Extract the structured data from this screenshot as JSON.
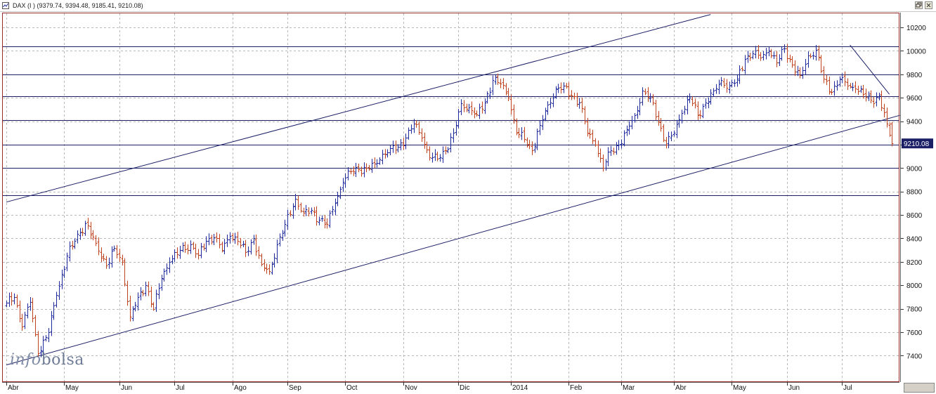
{
  "window": {
    "title": "DAX (I ) (9379.74, 9394.48, 9185.41, 9210.08)"
  },
  "watermark": {
    "part1": "info",
    "part2": "bolsa"
  },
  "colors": {
    "up_bar": "#1f2a9e",
    "down_bar": "#c0431d",
    "hline": "#1a1f66",
    "trendline": "#1a1f66",
    "last_label_bg": "#1a1f66",
    "grid": "#b8b8b8"
  },
  "chart_data": {
    "type": "bar",
    "style": "ohlc",
    "title": "DAX (I ) (9379.74, 9394.48, 9185.41, 9210.08)",
    "last_value_label": "9210.08",
    "ylim": [
      7180,
      10320
    ],
    "y_ticks": [
      7400,
      7600,
      7800,
      8000,
      8200,
      8400,
      8600,
      8800,
      9000,
      9200,
      9400,
      9600,
      9800,
      10000,
      10200
    ],
    "y_tick_labels": [
      "7400",
      "7600",
      "7800",
      "8000",
      "8200",
      "8400",
      "8600",
      "8800",
      "9000",
      "9200",
      "9400",
      "9600",
      "9800",
      "10000",
      "10200"
    ],
    "x_labels": [
      "Abr",
      "May",
      "Jun",
      "Jul",
      "Ago",
      "Sep",
      "Oct",
      "Nov",
      "Dic",
      "2014",
      "Feb",
      "Mar",
      "Abr",
      "May",
      "Jun",
      "Jul"
    ],
    "x_label_index": [
      0,
      22,
      43,
      64,
      86,
      107,
      129,
      151,
      172,
      192,
      214,
      234,
      254,
      276,
      297,
      318
    ],
    "grid": true,
    "horizontal_levels": [
      10040,
      9800,
      9610,
      9410,
      9200,
      9000,
      8770
    ],
    "trendlines": [
      {
        "from": [
          0,
          8710
        ],
        "to": [
          268,
          10310
        ]
      },
      {
        "from": [
          0,
          7320
        ],
        "to": [
          340,
          9450
        ]
      },
      {
        "from": [
          321,
          10050
        ],
        "to": [
          336,
          9630
        ]
      }
    ],
    "anchors": [
      [
        0,
        7850
      ],
      [
        3,
        7900
      ],
      [
        6,
        7650
      ],
      [
        9,
        7860
      ],
      [
        12,
        7420
      ],
      [
        16,
        7600
      ],
      [
        19,
        7920
      ],
      [
        23,
        8250
      ],
      [
        26,
        8380
      ],
      [
        30,
        8530
      ],
      [
        34,
        8360
      ],
      [
        38,
        8170
      ],
      [
        41,
        8320
      ],
      [
        44,
        8200
      ],
      [
        47,
        7730
      ],
      [
        50,
        7900
      ],
      [
        53,
        8000
      ],
      [
        56,
        7800
      ],
      [
        59,
        8060
      ],
      [
        62,
        8200
      ],
      [
        66,
        8300
      ],
      [
        70,
        8350
      ],
      [
        73,
        8260
      ],
      [
        76,
        8380
      ],
      [
        79,
        8410
      ],
      [
        82,
        8300
      ],
      [
        85,
        8420
      ],
      [
        88,
        8380
      ],
      [
        91,
        8280
      ],
      [
        94,
        8400
      ],
      [
        97,
        8180
      ],
      [
        100,
        8120
      ],
      [
        103,
        8350
      ],
      [
        106,
        8520
      ],
      [
        110,
        8740
      ],
      [
        113,
        8620
      ],
      [
        116,
        8640
      ],
      [
        119,
        8560
      ],
      [
        122,
        8520
      ],
      [
        125,
        8700
      ],
      [
        128,
        8880
      ],
      [
        131,
        8970
      ],
      [
        134,
        8990
      ],
      [
        137,
        9000
      ],
      [
        140,
        9040
      ],
      [
        143,
        9120
      ],
      [
        146,
        9170
      ],
      [
        149,
        9180
      ],
      [
        152,
        9260
      ],
      [
        155,
        9380
      ],
      [
        158,
        9260
      ],
      [
        161,
        9090
      ],
      [
        164,
        9080
      ],
      [
        167,
        9150
      ],
      [
        170,
        9300
      ],
      [
        173,
        9550
      ],
      [
        176,
        9520
      ],
      [
        179,
        9460
      ],
      [
        182,
        9560
      ],
      [
        185,
        9750
      ],
      [
        188,
        9720
      ],
      [
        191,
        9600
      ],
      [
        194,
        9300
      ],
      [
        197,
        9250
      ],
      [
        200,
        9150
      ],
      [
        203,
        9370
      ],
      [
        206,
        9540
      ],
      [
        209,
        9680
      ],
      [
        212,
        9700
      ],
      [
        215,
        9620
      ],
      [
        218,
        9560
      ],
      [
        221,
        9300
      ],
      [
        224,
        9200
      ],
      [
        227,
        9000
      ],
      [
        230,
        9150
      ],
      [
        233,
        9200
      ],
      [
        236,
        9330
      ],
      [
        239,
        9450
      ],
      [
        242,
        9660
      ],
      [
        245,
        9600
      ],
      [
        248,
        9400
      ],
      [
        251,
        9200
      ],
      [
        254,
        9300
      ],
      [
        257,
        9470
      ],
      [
        260,
        9600
      ],
      [
        263,
        9450
      ],
      [
        266,
        9560
      ],
      [
        269,
        9660
      ],
      [
        272,
        9750
      ],
      [
        275,
        9700
      ],
      [
        278,
        9760
      ],
      [
        281,
        9930
      ],
      [
        284,
        9980
      ],
      [
        287,
        9940
      ],
      [
        290,
        10000
      ],
      [
        293,
        9900
      ],
      [
        296,
        10020
      ],
      [
        299,
        9880
      ],
      [
        302,
        9790
      ],
      [
        305,
        9960
      ],
      [
        308,
        10010
      ],
      [
        311,
        9760
      ],
      [
        314,
        9650
      ],
      [
        317,
        9760
      ],
      [
        320,
        9700
      ],
      [
        323,
        9680
      ],
      [
        326,
        9630
      ],
      [
        329,
        9580
      ],
      [
        332,
        9620
      ],
      [
        335,
        9380
      ],
      [
        337,
        9210
      ]
    ],
    "last_bar": {
      "open": 9379.74,
      "high": 9394.48,
      "low": 9185.41,
      "close": 9210.08
    }
  }
}
